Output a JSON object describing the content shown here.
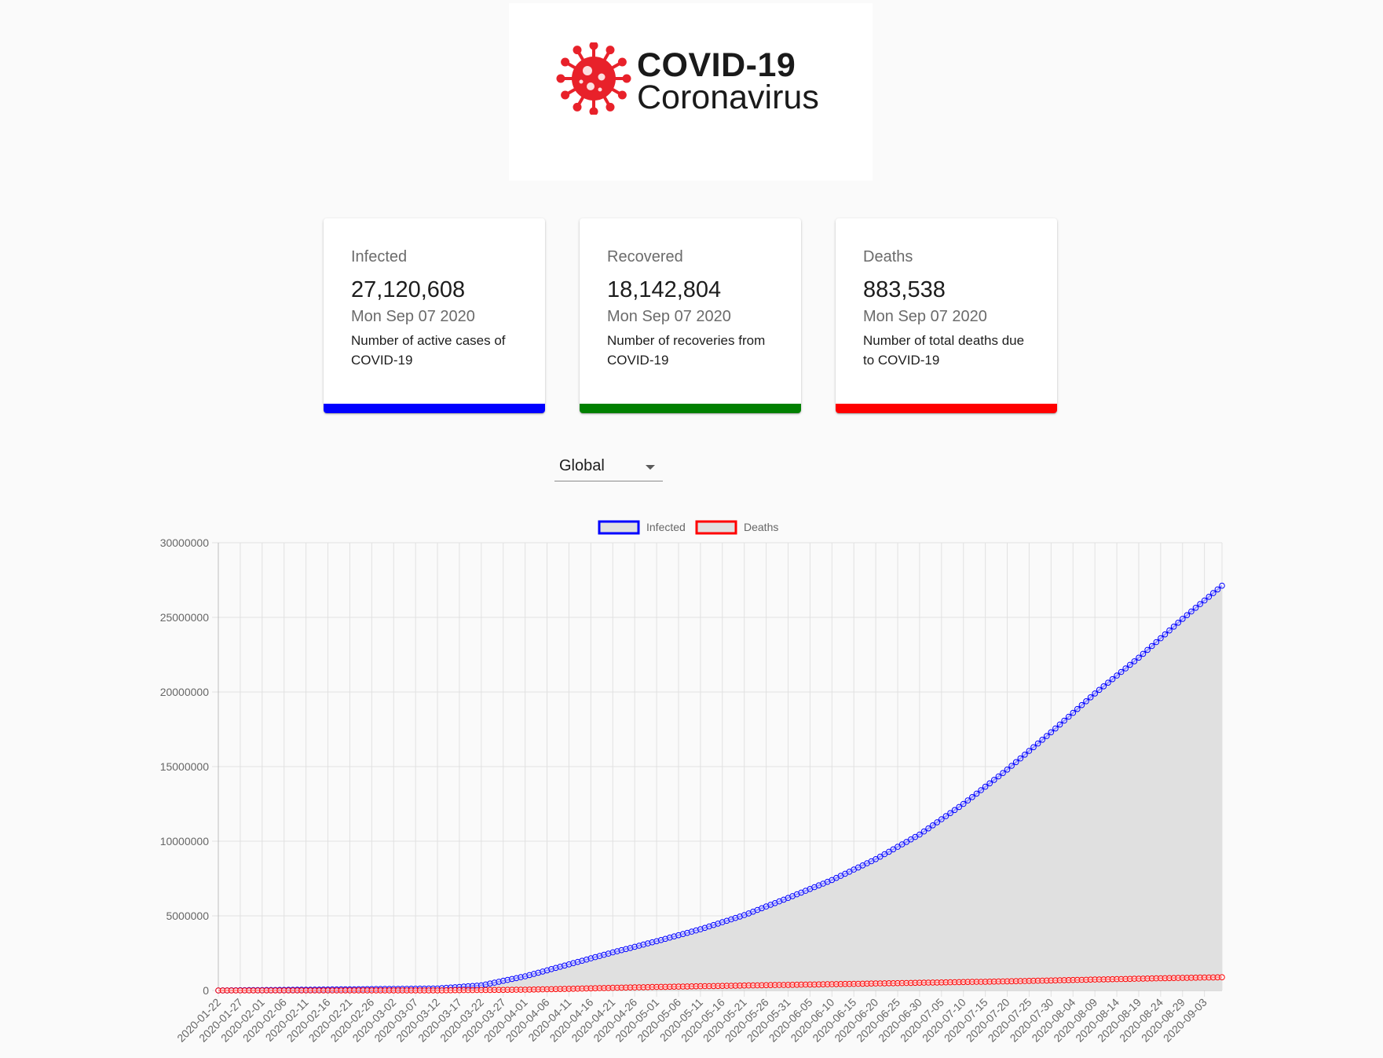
{
  "logo": {
    "title": "COVID-19",
    "subtitle": "Coronavirus",
    "icon": "virus-icon",
    "icon_color": "#e8212a"
  },
  "cards": [
    {
      "label": "Infected",
      "value": "27,120,608",
      "date": "Mon Sep 07 2020",
      "description": "Number of active cases of COVID-19",
      "color": "#0000ff"
    },
    {
      "label": "Recovered",
      "value": "18,142,804",
      "date": "Mon Sep 07 2020",
      "description": "Number of recoveries from COVID-19",
      "color": "#008000"
    },
    {
      "label": "Deaths",
      "value": "883,538",
      "date": "Mon Sep 07 2020",
      "description": "Number of total deaths due to COVID-19",
      "color": "#ff0000"
    }
  ],
  "country_select": {
    "value": "Global"
  },
  "chart_data": {
    "type": "line",
    "legend": [
      "Infected",
      "Deaths"
    ],
    "legend_placement": "top-center",
    "grid": true,
    "ylim": [
      0,
      30000000
    ],
    "yticks": [
      0,
      5000000,
      10000000,
      15000000,
      20000000,
      25000000,
      30000000
    ],
    "x_start": "2020-01-22",
    "x_end": "2020-09-07",
    "xtick_labels": [
      "2020-01-22",
      "2020-01-27",
      "2020-02-01",
      "2020-02-06",
      "2020-02-11",
      "2020-02-16",
      "2020-02-21",
      "2020-02-26",
      "2020-03-02",
      "2020-03-07",
      "2020-03-12",
      "2020-03-17",
      "2020-03-22",
      "2020-03-27",
      "2020-04-01",
      "2020-04-06",
      "2020-04-11",
      "2020-04-16",
      "2020-04-21",
      "2020-04-26",
      "2020-05-01",
      "2020-05-06",
      "2020-05-11",
      "2020-05-16",
      "2020-05-21",
      "2020-05-26",
      "2020-05-31",
      "2020-06-05",
      "2020-06-10",
      "2020-06-15",
      "2020-06-20",
      "2020-06-25",
      "2020-06-30",
      "2020-07-05",
      "2020-07-10",
      "2020-07-15",
      "2020-07-20",
      "2020-07-25",
      "2020-07-30",
      "2020-08-04",
      "2020-08-09",
      "2020-08-14",
      "2020-08-19",
      "2020-08-24",
      "2020-08-29",
      "2020-09-03"
    ],
    "series": [
      {
        "name": "Infected",
        "color": "#0000ff",
        "fill": "#e0e0e0",
        "keypoints": [
          [
            "2020-01-22",
            555
          ],
          [
            "2020-02-21",
            78000
          ],
          [
            "2020-03-12",
            130000
          ],
          [
            "2020-03-22",
            340000
          ],
          [
            "2020-04-01",
            950000
          ],
          [
            "2020-04-11",
            1750000
          ],
          [
            "2020-04-21",
            2550000
          ],
          [
            "2020-05-01",
            3300000
          ],
          [
            "2020-05-11",
            4100000
          ],
          [
            "2020-05-21",
            5050000
          ],
          [
            "2020-05-31",
            6200000
          ],
          [
            "2020-06-10",
            7400000
          ],
          [
            "2020-06-20",
            8800000
          ],
          [
            "2020-06-30",
            10450000
          ],
          [
            "2020-07-10",
            12500000
          ],
          [
            "2020-07-20",
            14800000
          ],
          [
            "2020-07-30",
            17300000
          ],
          [
            "2020-08-09",
            19900000
          ],
          [
            "2020-08-19",
            22300000
          ],
          [
            "2020-08-29",
            24900000
          ],
          [
            "2020-09-07",
            27120608
          ]
        ]
      },
      {
        "name": "Deaths",
        "color": "#ff0000",
        "keypoints": [
          [
            "2020-01-22",
            17
          ],
          [
            "2020-03-12",
            4600
          ],
          [
            "2020-04-01",
            51000
          ],
          [
            "2020-04-11",
            108000
          ],
          [
            "2020-04-21",
            177000
          ],
          [
            "2020-05-01",
            235000
          ],
          [
            "2020-05-21",
            330000
          ],
          [
            "2020-06-10",
            420000
          ],
          [
            "2020-06-30",
            515000
          ],
          [
            "2020-07-20",
            610000
          ],
          [
            "2020-08-09",
            730000
          ],
          [
            "2020-08-29",
            845000
          ],
          [
            "2020-09-07",
            883538
          ]
        ]
      }
    ]
  }
}
